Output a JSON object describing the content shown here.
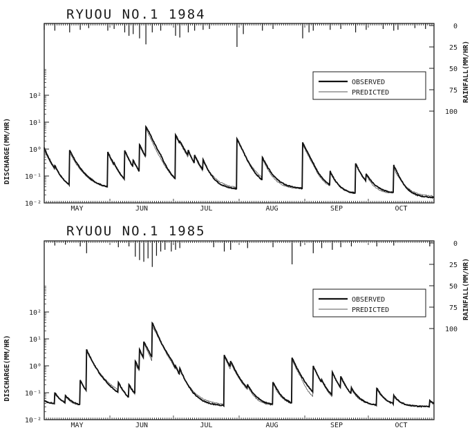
{
  "chart_data": [
    {
      "type": "line",
      "title": "RYUOU NO.1 1984",
      "ylabel": "DISCHARGE(MM/HR)",
      "y2label": "RAINFALL(MM/HR)",
      "yscale": "log",
      "ylim": [
        0.01,
        1000
      ],
      "y_ticks": [
        "10⁻²",
        "10⁻¹",
        "10⁰",
        "10¹",
        "10²"
      ],
      "y2_inverted": true,
      "y2lim": [
        0,
        100
      ],
      "y2_ticks": [
        "0",
        "25",
        "50",
        "75",
        "100"
      ],
      "months": [
        "MAY",
        "JUN",
        "JUL",
        "AUG",
        "SEP",
        "OCT"
      ],
      "days": 184,
      "month_starts": [
        0,
        31,
        61,
        92,
        123,
        153
      ],
      "legend": {
        "observed": "OBSERVED",
        "predicted": "PREDICTED",
        "position": "right"
      },
      "series": [
        {
          "name": "OBSERVED",
          "events": [
            [
              0,
              1.1,
              0.03
            ],
            [
              5,
              0.25,
              0.03
            ],
            [
              12,
              0.9,
              0.025
            ],
            [
              30,
              0.8,
              0.02
            ],
            [
              33,
              0.3,
              0.025
            ],
            [
              38,
              0.9,
              0.025
            ],
            [
              42,
              0.4,
              0.02
            ],
            [
              45,
              1.5,
              0.02
            ],
            [
              48,
              7.0,
              0.03
            ],
            [
              50,
              0.5,
              0.03
            ],
            [
              55,
              0.4,
              0.03
            ],
            [
              62,
              3.5,
              0.03
            ],
            [
              64,
              2.0,
              0.03
            ],
            [
              68,
              0.9,
              0.03
            ],
            [
              71,
              0.6,
              0.03
            ],
            [
              75,
              0.4,
              0.03
            ],
            [
              91,
              2.5,
              0.03
            ],
            [
              94,
              0.5,
              0.03
            ],
            [
              103,
              0.5,
              0.03
            ],
            [
              122,
              1.8,
              0.02
            ],
            [
              125,
              0.5,
              0.025
            ],
            [
              127,
              0.2,
              0.025
            ],
            [
              135,
              0.15,
              0.02
            ],
            [
              147,
              0.3,
              0.02
            ],
            [
              152,
              0.12,
              0.02
            ],
            [
              165,
              0.25,
              0.015
            ],
            [
              167,
              0.12,
              0.015
            ]
          ],
          "base": 0.05
        },
        {
          "name": "PREDICTED",
          "events": [
            [
              0,
              0.9,
              0.032
            ],
            [
              5,
              0.22,
              0.032
            ],
            [
              12,
              0.75,
              0.026
            ],
            [
              30,
              0.7,
              0.021
            ],
            [
              33,
              0.28,
              0.026
            ],
            [
              38,
              0.8,
              0.026
            ],
            [
              42,
              0.35,
              0.021
            ],
            [
              45,
              1.3,
              0.021
            ],
            [
              48,
              6.0,
              0.031
            ],
            [
              50,
              0.45,
              0.031
            ],
            [
              55,
              0.35,
              0.031
            ],
            [
              62,
              3.0,
              0.031
            ],
            [
              64,
              1.8,
              0.031
            ],
            [
              68,
              0.8,
              0.031
            ],
            [
              71,
              0.55,
              0.031
            ],
            [
              75,
              0.35,
              0.031
            ],
            [
              91,
              2.2,
              0.031
            ],
            [
              94,
              0.45,
              0.031
            ],
            [
              103,
              0.45,
              0.031
            ],
            [
              122,
              1.5,
              0.021
            ],
            [
              125,
              0.45,
              0.026
            ],
            [
              127,
              0.18,
              0.026
            ],
            [
              135,
              0.13,
              0.021
            ],
            [
              147,
              0.27,
              0.021
            ],
            [
              152,
              0.11,
              0.021
            ],
            [
              165,
              0.2,
              0.016
            ],
            [
              167,
              0.1,
              0.016
            ]
          ],
          "base": 0.048
        },
        {
          "name": "RAINFALL",
          "days_mm": [
            [
              0,
              5
            ],
            [
              5,
              6
            ],
            [
              12,
              8
            ],
            [
              17,
              5
            ],
            [
              21,
              3
            ],
            [
              30,
              6
            ],
            [
              33,
              4
            ],
            [
              38,
              8
            ],
            [
              40,
              12
            ],
            [
              42,
              10
            ],
            [
              45,
              15
            ],
            [
              48,
              22
            ],
            [
              51,
              8
            ],
            [
              55,
              6
            ],
            [
              62,
              12
            ],
            [
              64,
              14
            ],
            [
              68,
              8
            ],
            [
              71,
              6
            ],
            [
              75,
              5
            ],
            [
              78,
              4
            ],
            [
              91,
              25
            ],
            [
              94,
              10
            ],
            [
              103,
              6
            ],
            [
              108,
              4
            ],
            [
              122,
              15
            ],
            [
              125,
              8
            ],
            [
              127,
              6
            ],
            [
              135,
              5
            ],
            [
              140,
              4
            ],
            [
              147,
              8
            ],
            [
              152,
              5
            ],
            [
              160,
              4
            ],
            [
              165,
              6
            ],
            [
              167,
              5
            ],
            [
              175,
              3
            ],
            [
              180,
              4
            ]
          ]
        }
      ]
    },
    {
      "type": "line",
      "title": "RYUOU NO.1 1985",
      "ylabel": "DISCHARGE(MM/HR)",
      "y2label": "RAINFALL(MM/HR)",
      "yscale": "log",
      "ylim": [
        0.01,
        1000
      ],
      "y_ticks": [
        "10⁻²",
        "10⁻¹",
        "10⁰",
        "10¹",
        "10²"
      ],
      "y2_inverted": true,
      "y2lim": [
        0,
        100
      ],
      "y2_ticks": [
        "0",
        "25",
        "50",
        "75",
        "100"
      ],
      "months": [
        "MAY",
        "JUN",
        "JUL",
        "AUG",
        "SEP",
        "OCT"
      ],
      "days": 184,
      "month_starts": [
        0,
        31,
        61,
        92,
        123,
        153
      ],
      "legend": {
        "observed": "OBSERVED",
        "predicted": "PREDICTED",
        "position": "right"
      },
      "series": [
        {
          "name": "OBSERVED",
          "events": [
            [
              5,
              0.1,
              0.03
            ],
            [
              10,
              0.08,
              0.03
            ],
            [
              17,
              0.3,
              0.03
            ],
            [
              20,
              4.0,
              0.03
            ],
            [
              35,
              0.25,
              0.03
            ],
            [
              40,
              0.2,
              0.03
            ],
            [
              43,
              1.5,
              0.03
            ],
            [
              45,
              4.0,
              0.03
            ],
            [
              47,
              8.0,
              0.03
            ],
            [
              49,
              1.5,
              0.03
            ],
            [
              51,
              40.0,
              0.03
            ],
            [
              53,
              4.0,
              0.03
            ],
            [
              55,
              2.0,
              0.03
            ],
            [
              60,
              1.5,
              0.03
            ],
            [
              62,
              1.0,
              0.03
            ],
            [
              64,
              0.8,
              0.03
            ],
            [
              85,
              2.5,
              0.03
            ],
            [
              88,
              1.5,
              0.03
            ],
            [
              96,
              0.2,
              0.03
            ],
            [
              108,
              0.25,
              0.03
            ],
            [
              117,
              2.0,
              0.03
            ],
            [
              121,
              0.15,
              0.03
            ],
            [
              127,
              1.0,
              0.03
            ],
            [
              131,
              0.3,
              0.03
            ],
            [
              136,
              0.6,
              0.03
            ],
            [
              140,
              0.4,
              0.03
            ],
            [
              145,
              0.15,
              0.03
            ],
            [
              157,
              0.15,
              0.03
            ],
            [
              165,
              0.08,
              0.03
            ],
            [
              182,
              0.05,
              0.03
            ]
          ],
          "base": 0.05
        },
        {
          "name": "PREDICTED",
          "events": [
            [
              5,
              0.09,
              0.031
            ],
            [
              10,
              0.075,
              0.031
            ],
            [
              17,
              0.27,
              0.031
            ],
            [
              20,
              3.5,
              0.031
            ],
            [
              35,
              0.22,
              0.031
            ],
            [
              40,
              0.18,
              0.031
            ],
            [
              43,
              1.2,
              0.031
            ],
            [
              45,
              3.5,
              0.031
            ],
            [
              47,
              7.0,
              0.031
            ],
            [
              49,
              1.3,
              0.031
            ],
            [
              51,
              30.0,
              0.031
            ],
            [
              53,
              3.5,
              0.031
            ],
            [
              55,
              1.8,
              0.031
            ],
            [
              60,
              1.3,
              0.031
            ],
            [
              62,
              0.9,
              0.031
            ],
            [
              64,
              0.7,
              0.031
            ],
            [
              85,
              2.2,
              0.031
            ],
            [
              88,
              1.3,
              0.031
            ],
            [
              96,
              0.18,
              0.031
            ],
            [
              108,
              0.22,
              0.031
            ],
            [
              117,
              1.7,
              0.031
            ],
            [
              121,
              0.13,
              0.031
            ],
            [
              127,
              0.9,
              0.031
            ],
            [
              131,
              0.28,
              0.031
            ],
            [
              136,
              0.55,
              0.031
            ],
            [
              140,
              0.35,
              0.031
            ],
            [
              145,
              0.13,
              0.031
            ],
            [
              157,
              0.13,
              0.031
            ],
            [
              165,
              0.07,
              0.031
            ],
            [
              182,
              0.045,
              0.031
            ]
          ],
          "base": 0.048
        },
        {
          "name": "RAINFALL",
          "days_mm": [
            [
              5,
              3
            ],
            [
              10,
              2
            ],
            [
              17,
              4
            ],
            [
              20,
              12
            ],
            [
              35,
              5
            ],
            [
              40,
              4
            ],
            [
              43,
              16
            ],
            [
              45,
              20
            ],
            [
              47,
              22
            ],
            [
              49,
              18
            ],
            [
              51,
              28
            ],
            [
              53,
              15
            ],
            [
              55,
              10
            ],
            [
              57,
              8
            ],
            [
              60,
              10
            ],
            [
              62,
              8
            ],
            [
              64,
              6
            ],
            [
              80,
              5
            ],
            [
              85,
              10
            ],
            [
              88,
              8
            ],
            [
              96,
              6
            ],
            [
              108,
              5
            ],
            [
              117,
              25
            ],
            [
              121,
              4
            ],
            [
              127,
              12
            ],
            [
              131,
              6
            ],
            [
              136,
              8
            ],
            [
              140,
              5
            ],
            [
              145,
              4
            ],
            [
              157,
              4
            ],
            [
              165,
              3
            ],
            [
              182,
              4
            ]
          ]
        }
      ]
    }
  ]
}
